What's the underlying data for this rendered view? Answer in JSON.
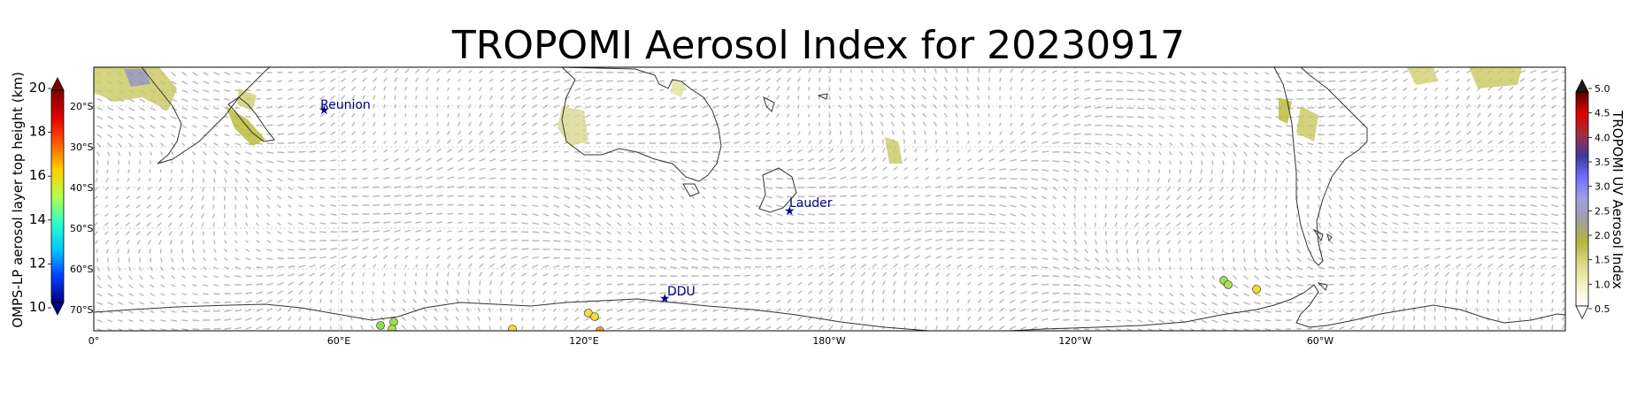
{
  "title": "TROPOMI Aerosol Index for 20230917",
  "left_colorbar": {
    "label": "OMPS-LP aerosol layer top height (km)",
    "ticks": [
      "10",
      "12",
      "14",
      "16",
      "18",
      "20"
    ],
    "colors": [
      "#00007f",
      "#0040ff",
      "#00c8ff",
      "#2fffc8",
      "#b4ff4a",
      "#ffd000",
      "#ff5a00",
      "#e00000",
      "#7f0000"
    ]
  },
  "right_colorbar": {
    "label": "TROPOMI UV Aerosol Index",
    "ticks": [
      "0.5",
      "1.0",
      "1.5",
      "2.0",
      "2.5",
      "3.0",
      "3.5",
      "4.0",
      "4.5",
      "5.0"
    ],
    "colors": [
      "#ffffff",
      "#f2f2c0",
      "#d9d98a",
      "#b5b53a",
      "#a0a0a0",
      "#a0a0e0",
      "#7070ff",
      "#3a3aa0",
      "#a03040",
      "#e00000",
      "#5a0000"
    ]
  },
  "lat_labels": [
    "20°S",
    "30°S",
    "40°S",
    "50°S",
    "60°S",
    "70°S"
  ],
  "lon_labels": [
    "0°",
    "60°E",
    "120°E",
    "180°W",
    "120°W",
    "60°W"
  ],
  "sites": [
    {
      "name": "Reunion"
    },
    {
      "name": "Lauder"
    },
    {
      "name": "DDU"
    }
  ],
  "colors": {
    "wind": "#b8b8b8",
    "coast": "#333333",
    "site_marker": "#006400",
    "site_label": "#000080"
  }
}
